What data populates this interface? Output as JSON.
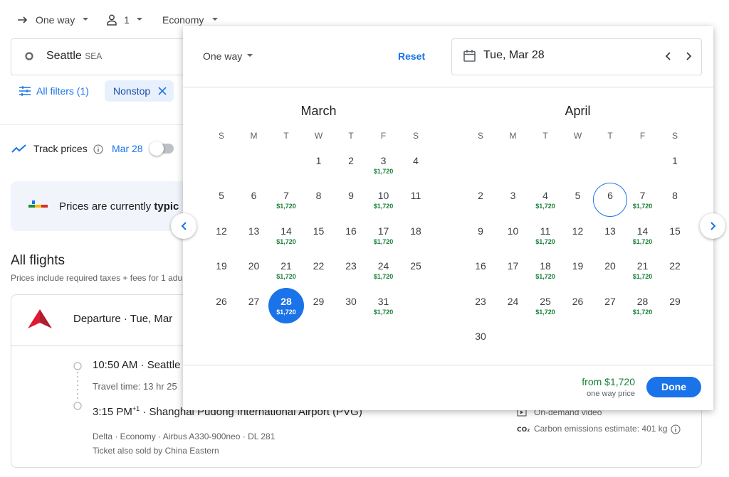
{
  "top_bar": {
    "trip_type": "One way",
    "passengers": "1",
    "cabin": "Economy"
  },
  "search": {
    "origin": "Seattle",
    "origin_code": "SEA"
  },
  "filters": {
    "all_filters": "All filters (1)",
    "chip": "Nonstop"
  },
  "track_prices": {
    "label": "Track prices",
    "date": "Mar 28"
  },
  "price_banner": {
    "text": "Prices are currently",
    "emphasis": "typic"
  },
  "results": {
    "title": "All flights",
    "subtitle": "Prices include required taxes + fees for 1 adu"
  },
  "flight_card": {
    "heading": "Departure · Tue, Mar",
    "departure": "10:50 AM · Seattle",
    "travel_time": "Travel time: 13 hr 25",
    "arrival_time": "3:15 PM",
    "day_offset": "+1",
    "arrival_airport": "· Shanghai Pudong International Airport (PVG)",
    "details": "Delta · Economy · Airbus A330-900neo · DL 281",
    "also_sold": "Ticket also sold by China Eastern",
    "amenity": "On-demand video",
    "emissions": "Carbon emissions estimate: 401 kg"
  },
  "date_picker": {
    "trip_type": "One way",
    "reset": "Reset",
    "selected_date": "Tue, Mar 28",
    "months": [
      {
        "name": "March",
        "weekdays": [
          "S",
          "M",
          "T",
          "W",
          "T",
          "F",
          "S"
        ],
        "days": [
          "1",
          "2",
          "3",
          "4",
          "5",
          "6",
          "7",
          "8",
          "9",
          "10",
          "11",
          "12",
          "13",
          "14",
          "15",
          "16",
          "17",
          "18",
          "19",
          "20",
          "21",
          "22",
          "23",
          "24",
          "25",
          "26",
          "27",
          "28",
          "29",
          "30",
          "31"
        ],
        "prices": [
          null,
          null,
          "$1,720",
          null,
          null,
          null,
          "$1,720",
          null,
          null,
          "$1,720",
          null,
          null,
          null,
          "$1,720",
          null,
          null,
          "$1,720",
          null,
          null,
          null,
          "$1,720",
          null,
          null,
          "$1,720",
          null,
          null,
          null,
          "$1,720",
          null,
          null,
          "$1,720"
        ]
      },
      {
        "name": "April",
        "weekdays": [
          "S",
          "M",
          "T",
          "W",
          "T",
          "F",
          "S"
        ],
        "days": [
          "1",
          "2",
          "3",
          "4",
          "5",
          "6",
          "7",
          "8",
          "9",
          "10",
          "11",
          "12",
          "13",
          "14",
          "15",
          "16",
          "17",
          "18",
          "19",
          "20",
          "21",
          "22",
          "23",
          "24",
          "25",
          "26",
          "27",
          "28",
          "29",
          "30"
        ],
        "prices": [
          null,
          null,
          null,
          "$1,720",
          null,
          null,
          "$1,720",
          null,
          null,
          null,
          "$1,720",
          null,
          null,
          "$1,720",
          null,
          null,
          null,
          "$1,720",
          null,
          null,
          "$1,720",
          null,
          null,
          null,
          "$1,720",
          null,
          null,
          "$1,720",
          null,
          null
        ]
      }
    ],
    "footer": {
      "price": "from $1,720",
      "price_note": "one way price",
      "done": "Done"
    }
  }
}
